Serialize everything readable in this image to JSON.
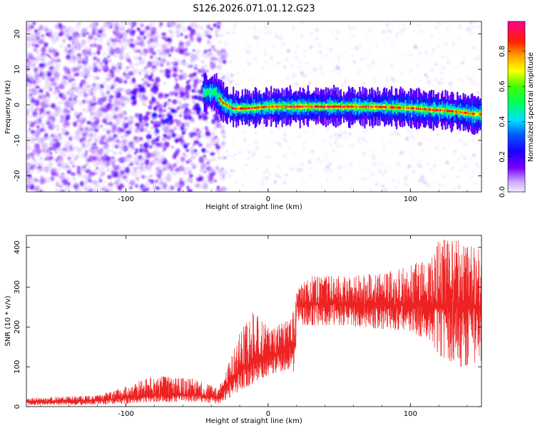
{
  "title": "S126.2026.071.01.12.G23",
  "chart_data": [
    {
      "type": "heatmap",
      "xlabel": "Height of straight line (km)",
      "ylabel": "Frequency (Hz)",
      "xlim": [
        -170,
        150
      ],
      "ylim": [
        -24.5,
        23.5
      ],
      "x_ticks": [
        "-100",
        "0",
        "100"
      ],
      "y_ticks": [
        "-20",
        "-10",
        "0",
        "10",
        "20"
      ],
      "colorbar": {
        "label": "Normalized spectral amplitude",
        "range": [
          0,
          0.97
        ],
        "ticks": [
          "0.0",
          "0.2",
          "0.4",
          "0.6",
          "0.8"
        ],
        "colors": [
          "#f5eeff",
          "#7a00ff",
          "#0000ff",
          "#00ffff",
          "#00ff00",
          "#ffff00",
          "#ff8000",
          "#ff0000",
          "#ff00aa"
        ]
      },
      "ridge": {
        "description_values": "signal ridge center frequency (Hz) vs height (km)",
        "x": [
          -45,
          -38,
          -32,
          -25,
          -15,
          0,
          20,
          40,
          60,
          80,
          100,
          115,
          130,
          145
        ],
        "y": [
          3.5,
          3.5,
          0.5,
          -1.0,
          -1.0,
          -0.5,
          -0.5,
          -0.5,
          -0.5,
          -0.6,
          -0.9,
          -1.4,
          -1.8,
          -2.6
        ]
      }
    },
    {
      "type": "line",
      "xlabel": "Height of straight line (km)",
      "ylabel": "SNR (10 * v/v)",
      "xlim": [
        -170,
        150
      ],
      "ylim": [
        0,
        430
      ],
      "x_ticks": [
        "-100",
        "0",
        "100"
      ],
      "y_ticks": [
        "0",
        "100",
        "200",
        "300",
        "400"
      ],
      "color": "#ee2222",
      "envelope": {
        "x": [
          -170,
          -120,
          -100,
          -80,
          -50,
          -35,
          -28,
          -20,
          -10,
          0,
          15,
          19,
          20,
          30,
          50,
          80,
          100,
          115,
          120,
          135,
          150
        ],
        "mid": [
          12,
          15,
          22,
          28,
          30,
          22,
          60,
          90,
          110,
          125,
          150,
          150,
          255,
          258,
          258,
          255,
          255,
          255,
          250,
          250,
          250
        ],
        "low": [
          4,
          5,
          8,
          12,
          12,
          8,
          20,
          40,
          60,
          80,
          95,
          85,
          205,
          205,
          205,
          195,
          190,
          160,
          130,
          100,
          115
        ],
        "high": [
          22,
          28,
          50,
          80,
          70,
          45,
          110,
          190,
          240,
          200,
          220,
          260,
          305,
          330,
          330,
          335,
          355,
          380,
          420,
          420,
          400
        ]
      }
    }
  ]
}
